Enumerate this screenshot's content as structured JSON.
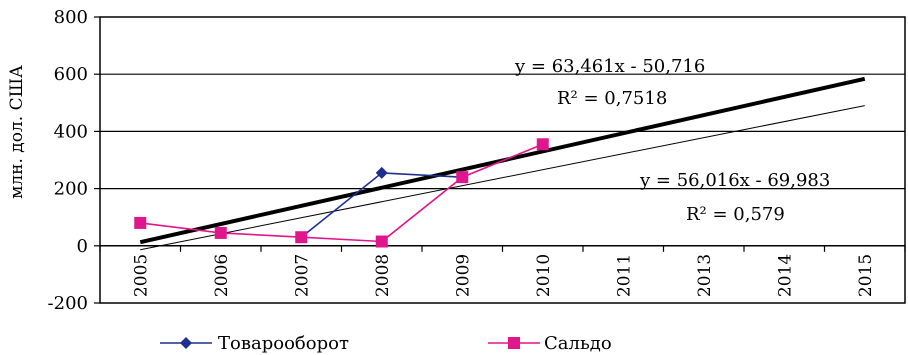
{
  "chart_data": {
    "type": "line",
    "title": "",
    "xlabel": "",
    "ylabel": "млн. дол. США",
    "categories": [
      "2005",
      "2006",
      "2007",
      "2008",
      "2009",
      "2010",
      "2011",
      "2013",
      "2014",
      "2015"
    ],
    "ylim": [
      -200,
      800
    ],
    "yticks": [
      "800",
      "600",
      "400",
      "200",
      "0",
      "-200"
    ],
    "grid": true,
    "legend_position": "bottom",
    "series": [
      {
        "name": "Товарооборот",
        "color": "#1f2f8f",
        "marker": "diamond",
        "values": [
          null,
          null,
          30,
          255,
          240,
          null,
          null,
          null,
          null,
          null
        ]
      },
      {
        "name": "Сальдо",
        "color": "#e0168c",
        "marker": "square",
        "values": [
          80,
          45,
          30,
          15,
          240,
          355,
          null,
          null,
          null,
          null
        ]
      }
    ],
    "trendlines": [
      {
        "series": "Товарооборот",
        "slope": 63.461,
        "intercept": -50.716,
        "style": "thick",
        "label_eq": "y = 63,461x - 50,716",
        "label_r2": "R² = 0,7518"
      },
      {
        "series": "Сальдо",
        "slope": 56.016,
        "intercept": -69.983,
        "style": "thin",
        "label_eq": "y = 56,016x - 69,983",
        "label_r2": "R² = 0,579"
      }
    ]
  }
}
